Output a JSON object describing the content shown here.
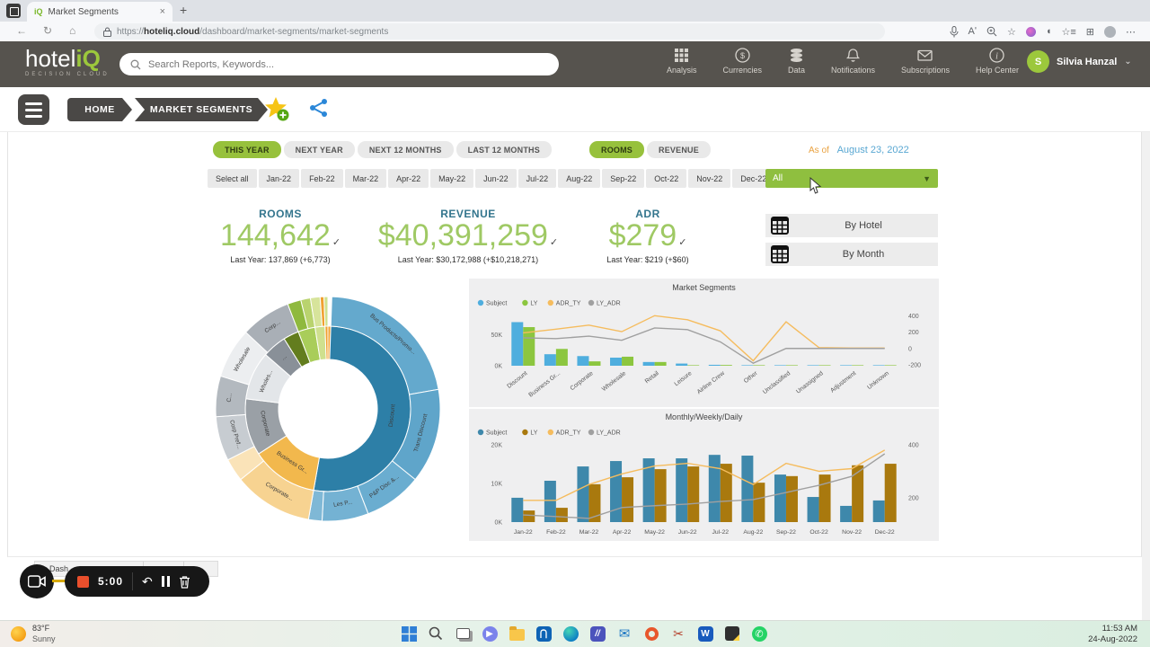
{
  "colors": {
    "accent_green": "#94c13e",
    "header_bg": "#56534e",
    "as_of_orange": "#e9a13f",
    "date_blue": "#58a7d2",
    "kpi_green": "#9fc964",
    "kpi_teal": "#33758d"
  },
  "browser": {
    "tab_title": "Market Segments",
    "new_tab": "+",
    "close_tab": "×",
    "url_prefix": "https://",
    "url_host": "hoteliq.cloud",
    "url_path": "/dashboard/market-segments/market-segments"
  },
  "header": {
    "logo_part1": "hotel",
    "logo_part2": "iQ",
    "logo_subtitle": "DECISION CLOUD",
    "search_placeholder": "Search Reports, Keywords...",
    "nav": [
      {
        "label": "Analysis",
        "icon": "grid-icon"
      },
      {
        "label": "Currencies",
        "icon": "currency-icon"
      },
      {
        "label": "Data",
        "icon": "database-icon"
      },
      {
        "label": "Notifications",
        "icon": "bell-icon"
      },
      {
        "label": "Subscriptions",
        "icon": "envelope-icon"
      },
      {
        "label": "Help Center",
        "icon": "info-icon"
      }
    ],
    "user": {
      "initial": "S",
      "name": "Silvia Hanzal"
    }
  },
  "breadcrumb": {
    "home": "HOME",
    "current": "MARKET SEGMENTS"
  },
  "filters": {
    "period_tabs": [
      {
        "label": "THIS YEAR",
        "active": true
      },
      {
        "label": "NEXT YEAR",
        "active": false
      },
      {
        "label": "NEXT 12 MONTHS",
        "active": false
      },
      {
        "label": "LAST 12 MONTHS",
        "active": false
      }
    ],
    "metric_tabs": [
      {
        "label": "ROOMS",
        "active": true
      },
      {
        "label": "REVENUE",
        "active": false
      }
    ],
    "as_of_label": "As of",
    "as_of_date": "August 23, 2022",
    "months": [
      "Select all",
      "Jan-22",
      "Feb-22",
      "Mar-22",
      "Apr-22",
      "May-22",
      "Jun-22",
      "Jul-22",
      "Aug-22",
      "Sep-22",
      "Oct-22",
      "Nov-22",
      "Dec-22"
    ],
    "segment_dropdown": "All"
  },
  "kpis": [
    {
      "label": "ROOMS",
      "value": "144,642",
      "last_year": "Last Year: 137,869 (+6,773)"
    },
    {
      "label": "REVENUE",
      "value": "$40,391,259",
      "last_year": "Last Year: $30,172,988 (+$10,218,271)"
    },
    {
      "label": "ADR",
      "value": "$279",
      "last_year": "Last Year: $219 (+$60)"
    }
  ],
  "actions": [
    {
      "label": "By Hotel"
    },
    {
      "label": "By Month"
    }
  ],
  "chart_data": [
    {
      "type": "sunburst",
      "rings": [
        {
          "name": "inner",
          "segments": [
            {
              "label": "",
              "from": 0,
              "to": 2,
              "color": "#f0a030"
            },
            {
              "label": "Discount",
              "from": 2,
              "to": 190,
              "color": "#2d7fa7"
            },
            {
              "label": "Business Gr...",
              "from": 190,
              "to": 237,
              "color": "#f2b84d"
            },
            {
              "label": "Corporate",
              "from": 237,
              "to": 277,
              "color": "#9aa0a6"
            },
            {
              "label": "Wholes...",
              "from": 277,
              "to": 311,
              "color": "#e3e6e9"
            },
            {
              "label": "...",
              "from": 311,
              "to": 328,
              "color": "#899098"
            },
            {
              "label": "",
              "from": 328,
              "to": 339,
              "color": "#637d1e"
            },
            {
              "label": "",
              "from": 339,
              "to": 351,
              "color": "#a9cd5a"
            },
            {
              "label": "",
              "from": 351,
              "to": 358,
              "color": "#cfe08e"
            },
            {
              "label": "",
              "from": 358,
              "to": 360,
              "color": "#f0a030"
            }
          ]
        },
        {
          "name": "outer",
          "segments": [
            {
              "label": "Bus Products/Promo...",
              "from": 2,
              "to": 80,
              "color": "#64a9cd"
            },
            {
              "label": "Trans Discount",
              "from": 80,
              "to": 129,
              "color": "#5fa5ca"
            },
            {
              "label": "P&P Disc &...",
              "from": 129,
              "to": 159,
              "color": "#6aadd0"
            },
            {
              "label": "Les P...",
              "from": 159,
              "to": 183,
              "color": "#74b2d3"
            },
            {
              "label": "",
              "from": 183,
              "to": 190,
              "color": "#7fb8d6"
            },
            {
              "label": "Corporate...",
              "from": 190,
              "to": 231,
              "color": "#f7d391"
            },
            {
              "label": "",
              "from": 231,
              "to": 243,
              "color": "#fae3b8"
            },
            {
              "label": "Corp Pref...",
              "from": 243,
              "to": 266,
              "color": "#c7ccd1"
            },
            {
              "label": "C...",
              "from": 266,
              "to": 287,
              "color": "#b3b9bf"
            },
            {
              "label": "Wholesale",
              "from": 287,
              "to": 313,
              "color": "#eceef0"
            },
            {
              "label": "Corp...",
              "from": 313,
              "to": 339,
              "color": "#a9afb6"
            },
            {
              "label": "",
              "from": 339,
              "to": 346,
              "color": "#8fb93e"
            },
            {
              "label": "",
              "from": 346,
              "to": 351,
              "color": "#b9d36e"
            },
            {
              "label": "",
              "from": 351,
              "to": 356,
              "color": "#d7e49b"
            },
            {
              "label": "",
              "from": 356,
              "to": 358,
              "color": "#f0a030"
            },
            {
              "label": "",
              "from": 358,
              "to": 360,
              "color": "#cfe08e"
            }
          ]
        }
      ]
    },
    {
      "type": "combo",
      "title": "Market Segments",
      "legend": [
        {
          "label": "Subject",
          "color": "#4faede"
        },
        {
          "label": "LY",
          "color": "#8cc63f"
        },
        {
          "label": "ADR_TY",
          "color": "#f5bc5e"
        },
        {
          "label": "LY_ADR",
          "color": "#a0a0a0"
        }
      ],
      "categories": [
        "Discount",
        "Business Gr...",
        "Corporate",
        "Wholesale",
        "Retail",
        "Leisure",
        "Airline Crew",
        "Other",
        "Unclassified",
        "Unassigned",
        "Adjustment",
        "Unknown"
      ],
      "bar_series": [
        {
          "name": "Subject",
          "color": "#4faede",
          "values": [
            70,
            18.5,
            15.5,
            13,
            6,
            3.5,
            1.5,
            0.8,
            0.6,
            0.5,
            0.2,
            0.1
          ]
        },
        {
          "name": "LY",
          "color": "#8cc63f",
          "values": [
            62,
            27,
            7,
            14.5,
            6,
            0.7,
            1.2,
            0.5,
            0.3,
            0.1,
            0.05,
            0.05
          ]
        }
      ],
      "line_series": [
        {
          "name": "ADR_TY",
          "color": "#f5bc5e",
          "values": [
            190,
            235,
            285,
            205,
            400,
            350,
            215,
            -150,
            325,
            10,
            5,
            5
          ]
        },
        {
          "name": "LY_ADR",
          "color": "#a0a0a0",
          "values": [
            130,
            120,
            150,
            100,
            250,
            230,
            80,
            -180,
            0,
            0,
            0,
            0
          ]
        }
      ],
      "left_axis": {
        "max": 88,
        "ticks": [
          {
            "label": "50K",
            "value": 50
          },
          {
            "label": "0K",
            "value": 0
          }
        ]
      },
      "right_axis": {
        "min": -211,
        "max": 458,
        "ticks": [
          400,
          200,
          0,
          -200
        ]
      },
      "x_label_rotation": -38
    },
    {
      "type": "combo",
      "title": "Monthly/Weekly/Daily",
      "legend": [
        {
          "label": "Subject",
          "color": "#3e88ab"
        },
        {
          "label": "LY",
          "color": "#a9790e"
        },
        {
          "label": "ADR_TY",
          "color": "#f5bc5e"
        },
        {
          "label": "LY_ADR",
          "color": "#a0a0a0"
        }
      ],
      "categories": [
        "Jan-22",
        "Feb-22",
        "Mar-22",
        "Apr-22",
        "May-22",
        "Jun-22",
        "Jul-22",
        "Aug-22",
        "Sep-22",
        "Oct-22",
        "Nov-22",
        "Dec-22"
      ],
      "bar_series": [
        {
          "name": "Subject",
          "color": "#3e88ab",
          "values": [
            6.3,
            10.7,
            14.4,
            15.8,
            16.5,
            16.5,
            17.4,
            17.2,
            12.3,
            6.5,
            4.2,
            5.6
          ]
        },
        {
          "name": "LY",
          "color": "#a9790e",
          "values": [
            3,
            3.7,
            9.8,
            11.6,
            13.7,
            14.4,
            15.1,
            10.2,
            11.9,
            12.3,
            14.7,
            15.1
          ]
        }
      ],
      "line_series": [
        {
          "name": "ADR_TY",
          "color": "#f5bc5e",
          "values": [
            190,
            190,
            250,
            290,
            320,
            330,
            310,
            250,
            330,
            300,
            310,
            380
          ]
        },
        {
          "name": "LY_ADR",
          "color": "#a0a0a0",
          "values": [
            135,
            129,
            122,
            163,
            170,
            176,
            186,
            193,
            220,
            247,
            281,
            366
          ]
        }
      ],
      "left_axis": {
        "max": 20,
        "ticks": [
          {
            "label": "20K",
            "value": 20
          },
          {
            "label": "10K",
            "value": 10
          },
          {
            "label": "0K",
            "value": 0
          }
        ]
      },
      "right_axis": {
        "min": 108,
        "max": 400,
        "ticks": [
          400,
          200
        ]
      },
      "x_label_rotation": 0
    }
  ],
  "recorder": {
    "time": "5:00",
    "tab_fragment": "Dash..."
  },
  "taskbar": {
    "weather_temp": "83°F",
    "weather_desc": "Sunny",
    "time": "11:53 AM",
    "date": "24-Aug-2022",
    "icons": [
      "start",
      "search",
      "task-view",
      "chat",
      "file-explorer",
      "store",
      "edge",
      "project-app",
      "mail",
      "office",
      "snipping-tool",
      "word",
      "notes",
      "whatsapp"
    ]
  }
}
